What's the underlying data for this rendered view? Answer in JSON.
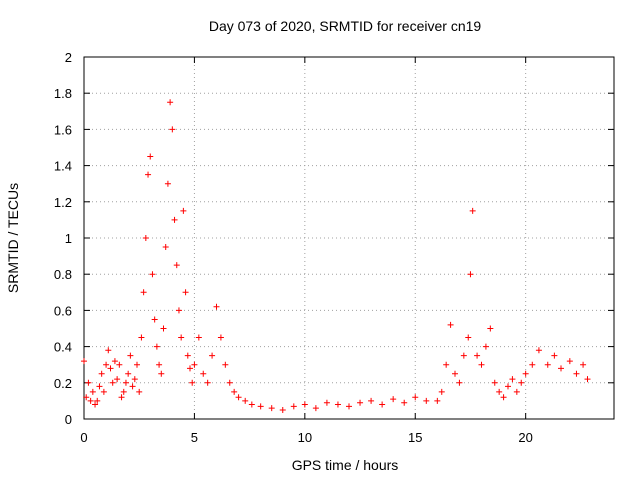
{
  "chart_data": {
    "type": "scatter",
    "title": "Day 073 of 2020, SRMTID for receiver cn19",
    "xlabel": "GPS time / hours",
    "ylabel": "SRMTID / TECUs",
    "xlim": [
      0,
      24
    ],
    "ylim": [
      0,
      2
    ],
    "xticks": [
      0,
      5,
      10,
      15,
      20
    ],
    "xtick_labels": [
      "0",
      "5",
      "10",
      "15",
      "20"
    ],
    "yticks": [
      0,
      0.2,
      0.4,
      0.6,
      0.8,
      1,
      1.2,
      1.4,
      1.6,
      1.8,
      2
    ],
    "ytick_labels": [
      "0",
      "0.2",
      "0.4",
      "0.6",
      "0.8",
      "1",
      "1.2",
      "1.4",
      "1.6",
      "1.8",
      "2"
    ],
    "grid": true,
    "marker": "+",
    "series": [
      {
        "name": "SRMTID",
        "color": "#ff0000",
        "x": [
          0.0,
          0.1,
          0.2,
          0.3,
          0.4,
          0.5,
          0.6,
          0.7,
          0.8,
          0.9,
          1.0,
          1.1,
          1.2,
          1.3,
          1.4,
          1.5,
          1.6,
          1.7,
          1.8,
          1.9,
          2.0,
          2.1,
          2.2,
          2.3,
          2.4,
          2.5,
          2.6,
          2.7,
          2.8,
          2.9,
          3.0,
          3.1,
          3.2,
          3.3,
          3.4,
          3.5,
          3.6,
          3.7,
          3.8,
          3.9,
          4.0,
          4.1,
          4.2,
          4.3,
          4.4,
          4.5,
          4.6,
          4.7,
          4.8,
          4.9,
          5.0,
          5.2,
          5.4,
          5.6,
          5.8,
          6.0,
          6.2,
          6.4,
          6.6,
          6.8,
          7.0,
          7.3,
          7.6,
          8.0,
          8.5,
          9.0,
          9.5,
          10.0,
          10.5,
          11.0,
          11.5,
          12.0,
          12.5,
          13.0,
          13.5,
          14.0,
          14.5,
          15.0,
          15.5,
          16.0,
          16.2,
          16.4,
          16.6,
          16.8,
          17.0,
          17.2,
          17.4,
          17.5,
          17.6,
          17.8,
          18.0,
          18.2,
          18.4,
          18.6,
          18.8,
          19.0,
          19.2,
          19.4,
          19.6,
          19.8,
          20.0,
          20.3,
          20.6,
          21.0,
          21.3,
          21.6,
          22.0,
          22.3,
          22.6,
          22.8
        ],
        "y": [
          0.32,
          0.12,
          0.2,
          0.1,
          0.15,
          0.08,
          0.1,
          0.18,
          0.25,
          0.15,
          0.3,
          0.38,
          0.28,
          0.2,
          0.32,
          0.22,
          0.3,
          0.12,
          0.15,
          0.2,
          0.25,
          0.35,
          0.18,
          0.22,
          0.3,
          0.15,
          0.45,
          0.7,
          1.0,
          1.35,
          1.45,
          0.8,
          0.55,
          0.4,
          0.3,
          0.25,
          0.5,
          0.95,
          1.3,
          1.75,
          1.6,
          1.1,
          0.85,
          0.6,
          0.45,
          1.15,
          0.7,
          0.35,
          0.28,
          0.2,
          0.3,
          0.45,
          0.25,
          0.2,
          0.35,
          0.62,
          0.45,
          0.3,
          0.2,
          0.15,
          0.12,
          0.1,
          0.08,
          0.07,
          0.06,
          0.05,
          0.07,
          0.08,
          0.06,
          0.09,
          0.08,
          0.07,
          0.09,
          0.1,
          0.08,
          0.11,
          0.09,
          0.12,
          0.1,
          0.1,
          0.15,
          0.3,
          0.52,
          0.25,
          0.2,
          0.35,
          0.45,
          0.8,
          1.15,
          0.35,
          0.3,
          0.4,
          0.5,
          0.2,
          0.15,
          0.12,
          0.18,
          0.22,
          0.15,
          0.2,
          0.25,
          0.3,
          0.38,
          0.3,
          0.35,
          0.28,
          0.32,
          0.25,
          0.3,
          0.22
        ]
      }
    ]
  }
}
